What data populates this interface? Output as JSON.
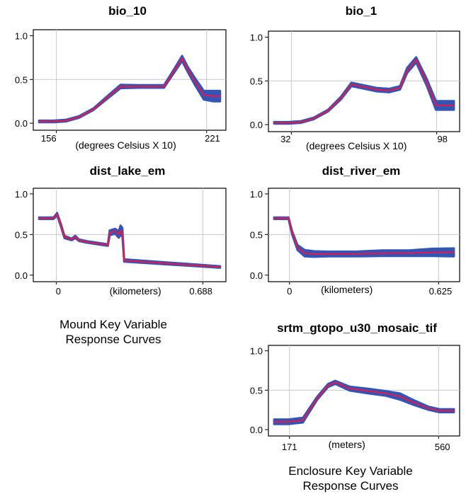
{
  "captions": {
    "mound": [
      "Mound Key Variable",
      "Response Curves"
    ],
    "enclosure": [
      "Enclosure Key Variable",
      "Response Curves"
    ]
  },
  "colors": {
    "band": "#3355b5",
    "line": "#e8174a",
    "grid": "#c8c8c8",
    "frame": "#000000"
  },
  "chart_data": [
    {
      "type": "line",
      "title": "bio_10",
      "xlabel": "(degrees Celsius X 10)",
      "x_tick_labels": [
        "156",
        "221"
      ],
      "y_ticks": [
        "0.0",
        "0.5",
        "1.0"
      ],
      "ylim": [
        0,
        1
      ],
      "x": [
        0,
        0.08,
        0.15,
        0.22,
        0.3,
        0.38,
        0.45,
        0.55,
        0.65,
        0.69,
        0.74,
        0.79,
        0.82,
        0.86,
        0.91,
        0.96,
        1.0
      ],
      "y": [
        0.02,
        0.02,
        0.03,
        0.07,
        0.16,
        0.3,
        0.42,
        0.42,
        0.42,
        0.42,
        0.58,
        0.74,
        0.62,
        0.48,
        0.32,
        0.31,
        0.31
      ],
      "band_half_width": [
        0.01,
        0.01,
        0.01,
        0.01,
        0.01,
        0.015,
        0.02,
        0.015,
        0.015,
        0.015,
        0.02,
        0.03,
        0.03,
        0.04,
        0.05,
        0.06,
        0.06
      ]
    },
    {
      "type": "line",
      "title": "bio_1",
      "xlabel": "(degrees Celsius X 10)",
      "x_tick_labels": [
        "32",
        "98"
      ],
      "y_ticks": [
        "0.0",
        "0.5",
        "1.0"
      ],
      "ylim": [
        0,
        1
      ],
      "x": [
        0,
        0.08,
        0.15,
        0.22,
        0.3,
        0.37,
        0.43,
        0.5,
        0.57,
        0.64,
        0.7,
        0.74,
        0.79,
        0.85,
        0.9,
        0.96,
        1.0
      ],
      "y": [
        0.02,
        0.02,
        0.03,
        0.07,
        0.16,
        0.3,
        0.46,
        0.43,
        0.4,
        0.39,
        0.42,
        0.62,
        0.74,
        0.48,
        0.22,
        0.22,
        0.22
      ],
      "band_half_width": [
        0.01,
        0.01,
        0.01,
        0.01,
        0.01,
        0.015,
        0.02,
        0.02,
        0.02,
        0.02,
        0.02,
        0.03,
        0.03,
        0.04,
        0.05,
        0.05,
        0.05
      ]
    },
    {
      "type": "line",
      "title": "dist_lake_em",
      "xlabel": "(kilometers)",
      "x_tick_labels": [
        "0",
        "0.688"
      ],
      "y_ticks": [
        "0.0",
        "0.5",
        "1.0"
      ],
      "ylim": [
        0,
        1
      ],
      "x": [
        0,
        0.08,
        0.1,
        0.12,
        0.14,
        0.18,
        0.2,
        0.22,
        0.26,
        0.35,
        0.38,
        0.39,
        0.42,
        0.44,
        0.45,
        0.46,
        0.47,
        1.0
      ],
      "y": [
        0.7,
        0.7,
        0.75,
        0.62,
        0.47,
        0.44,
        0.47,
        0.43,
        0.41,
        0.38,
        0.37,
        0.52,
        0.54,
        0.5,
        0.55,
        0.53,
        0.18,
        0.1
      ],
      "band_half_width": [
        0.01,
        0.01,
        0.015,
        0.015,
        0.015,
        0.01,
        0.015,
        0.01,
        0.01,
        0.01,
        0.01,
        0.03,
        0.03,
        0.04,
        0.06,
        0.05,
        0.015,
        0.01
      ]
    },
    {
      "type": "line",
      "title": "dist_river_em",
      "xlabel": "(kilometers)",
      "x_tick_labels": [
        "0",
        "0.625"
      ],
      "y_ticks": [
        "0.0",
        "0.5",
        "1.0"
      ],
      "ylim": [
        0,
        1
      ],
      "x": [
        0,
        0.08,
        0.1,
        0.13,
        0.17,
        0.22,
        0.3,
        0.45,
        0.6,
        0.75,
        0.88,
        1.0
      ],
      "y": [
        0.7,
        0.7,
        0.52,
        0.34,
        0.27,
        0.26,
        0.26,
        0.26,
        0.27,
        0.27,
        0.28,
        0.28
      ],
      "band_half_width": [
        0.01,
        0.01,
        0.02,
        0.03,
        0.04,
        0.035,
        0.03,
        0.03,
        0.035,
        0.035,
        0.045,
        0.05
      ]
    },
    {
      "type": "line",
      "title": "srtm_gtopo_u30_mosaic_tif",
      "xlabel": "(meters)",
      "x_tick_labels": [
        "171",
        "560"
      ],
      "y_ticks": [
        "0.0",
        "0.5",
        "1.0"
      ],
      "ylim": [
        0,
        1
      ],
      "x": [
        0,
        0.08,
        0.16,
        0.24,
        0.3,
        0.34,
        0.42,
        0.52,
        0.62,
        0.7,
        0.78,
        0.86,
        0.92,
        1.0
      ],
      "y": [
        0.1,
        0.1,
        0.12,
        0.4,
        0.56,
        0.6,
        0.52,
        0.49,
        0.46,
        0.42,
        0.34,
        0.27,
        0.24,
        0.24
      ],
      "band_half_width": [
        0.03,
        0.03,
        0.03,
        0.02,
        0.02,
        0.02,
        0.025,
        0.03,
        0.03,
        0.04,
        0.03,
        0.02,
        0.02,
        0.02
      ]
    }
  ]
}
